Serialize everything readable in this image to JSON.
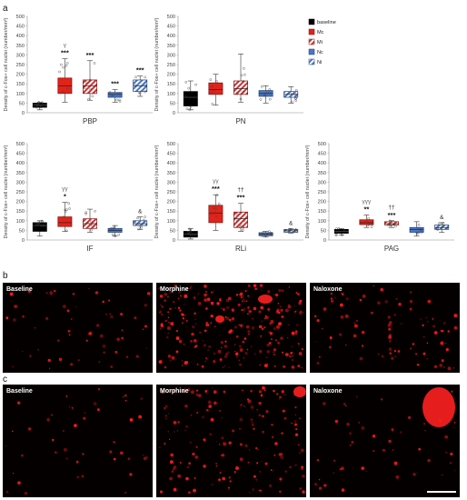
{
  "panel_letters": {
    "a": "a",
    "b": "b",
    "c": "c"
  },
  "chart_data": [
    {
      "type": "box",
      "title": "PBP",
      "ylabel": "Density of c-Fos+ cell nuclei (number/mm²)",
      "ylim": [
        0,
        500
      ],
      "yticks": [
        0,
        50,
        100,
        150,
        200,
        250,
        300,
        350,
        400,
        450,
        500
      ],
      "series": [
        {
          "name": "baseline",
          "min": 15,
          "q1": 28,
          "median": 40,
          "q3": 50,
          "max": 55,
          "stars": "",
          "sym": ""
        },
        {
          "name": "Mc",
          "min": 55,
          "q1": 100,
          "median": 140,
          "q3": 180,
          "max": 280,
          "stars": "***",
          "sym": "γ"
        },
        {
          "name": "Mi",
          "min": 65,
          "q1": 100,
          "median": 140,
          "q3": 170,
          "max": 270,
          "stars": "***",
          "sym": ""
        },
        {
          "name": "Nc",
          "min": 55,
          "q1": 80,
          "median": 95,
          "q3": 105,
          "max": 120,
          "stars": "***",
          "sym": ""
        },
        {
          "name": "Ni",
          "min": 85,
          "q1": 110,
          "median": 140,
          "q3": 170,
          "max": 190,
          "stars": "***",
          "sym": ""
        }
      ]
    },
    {
      "type": "box",
      "title": "PN",
      "ylabel": "Density of c-Fos+ cell nuclei (number/mm²)",
      "ylim": [
        0,
        500
      ],
      "yticks": [
        0,
        50,
        100,
        150,
        200,
        250,
        300,
        350,
        400,
        450,
        500
      ],
      "series": [
        {
          "name": "baseline",
          "min": 15,
          "q1": 35,
          "median": 80,
          "q3": 110,
          "max": 165,
          "stars": "",
          "sym": ""
        },
        {
          "name": "Mc",
          "min": 40,
          "q1": 95,
          "median": 120,
          "q3": 155,
          "max": 200,
          "stars": "",
          "sym": ""
        },
        {
          "name": "Mi",
          "min": 55,
          "q1": 95,
          "median": 125,
          "q3": 165,
          "max": 305,
          "stars": "",
          "sym": ""
        },
        {
          "name": "Nc",
          "min": 50,
          "q1": 85,
          "median": 100,
          "q3": 115,
          "max": 140,
          "stars": "",
          "sym": ""
        },
        {
          "name": "Ni",
          "min": 50,
          "q1": 80,
          "median": 95,
          "q3": 110,
          "max": 135,
          "stars": "",
          "sym": ""
        }
      ]
    },
    {
      "type": "box",
      "title": "IF",
      "ylabel": "Density of c-Fos+ cell nuclei (number/mm²)",
      "ylim": [
        0,
        500
      ],
      "yticks": [
        0,
        50,
        100,
        150,
        200,
        250,
        300,
        350,
        400,
        450,
        500
      ],
      "series": [
        {
          "name": "baseline",
          "min": 20,
          "q1": 45,
          "median": 75,
          "q3": 90,
          "max": 100,
          "stars": "",
          "sym": ""
        },
        {
          "name": "Mc",
          "min": 45,
          "q1": 70,
          "median": 90,
          "q3": 120,
          "max": 195,
          "stars": "*",
          "sym": "γγ"
        },
        {
          "name": "Mi",
          "min": 40,
          "q1": 60,
          "median": 85,
          "q3": 110,
          "max": 160,
          "stars": "",
          "sym": ""
        },
        {
          "name": "Nc",
          "min": 20,
          "q1": 40,
          "median": 50,
          "q3": 60,
          "max": 75,
          "stars": "",
          "sym": ""
        },
        {
          "name": "Ni",
          "min": 55,
          "q1": 75,
          "median": 85,
          "q3": 100,
          "max": 120,
          "stars": "",
          "sym": "&"
        }
      ]
    },
    {
      "type": "box",
      "title": "RLi",
      "ylabel": "Density of c-Fos+ cell nuclei (number/mm²)",
      "ylim": [
        0,
        500
      ],
      "yticks": [
        0,
        50,
        100,
        150,
        200,
        250,
        300,
        350,
        400,
        450,
        500
      ],
      "series": [
        {
          "name": "baseline",
          "min": 5,
          "q1": 15,
          "median": 30,
          "q3": 45,
          "max": 60,
          "stars": "",
          "sym": ""
        },
        {
          "name": "Mc",
          "min": 50,
          "q1": 90,
          "median": 140,
          "q3": 180,
          "max": 235,
          "stars": "***",
          "sym": "γγ"
        },
        {
          "name": "Mi",
          "min": 45,
          "q1": 65,
          "median": 110,
          "q3": 145,
          "max": 190,
          "stars": "***",
          "sym": "††"
        },
        {
          "name": "Nc",
          "min": 15,
          "q1": 22,
          "median": 30,
          "q3": 38,
          "max": 45,
          "stars": "",
          "sym": ""
        },
        {
          "name": "Ni",
          "min": 35,
          "q1": 40,
          "median": 48,
          "q3": 55,
          "max": 60,
          "stars": "",
          "sym": "&"
        }
      ]
    },
    {
      "type": "box",
      "title": "PAG",
      "ylabel": "Density of c-Fos+ cell nuclei (number/mm²)",
      "ylim": [
        0,
        500
      ],
      "yticks": [
        0,
        50,
        100,
        150,
        200,
        250,
        300,
        350,
        400,
        450,
        500
      ],
      "series": [
        {
          "name": "baseline",
          "min": 25,
          "q1": 35,
          "median": 45,
          "q3": 55,
          "max": 60,
          "stars": "",
          "sym": ""
        },
        {
          "name": "Mc",
          "min": 65,
          "q1": 80,
          "median": 90,
          "q3": 105,
          "max": 130,
          "stars": "**",
          "sym": "γγγ"
        },
        {
          "name": "Mi",
          "min": 65,
          "q1": 78,
          "median": 85,
          "q3": 95,
          "max": 100,
          "stars": "***",
          "sym": "††"
        },
        {
          "name": "Nc",
          "min": 20,
          "q1": 40,
          "median": 55,
          "q3": 65,
          "max": 95,
          "stars": "",
          "sym": ""
        },
        {
          "name": "Ni",
          "min": 40,
          "q1": 55,
          "median": 65,
          "q3": 78,
          "max": 90,
          "stars": "",
          "sym": "&"
        }
      ]
    }
  ],
  "legend": [
    {
      "name": "baseline",
      "label": "baseline"
    },
    {
      "name": "Mc",
      "label": "Mc"
    },
    {
      "name": "Mi",
      "label": "Mi"
    },
    {
      "name": "Nc",
      "label": "Nc"
    },
    {
      "name": "Ni",
      "label": "Ni"
    }
  ],
  "micrographs": {
    "b": [
      "Baseline",
      "Morphine",
      "Naloxone"
    ],
    "c": [
      "Baseline",
      "Morphine",
      "Naloxone"
    ]
  },
  "colors": {
    "baseline": "#000000",
    "Mc": "#e2231a",
    "Mi": "#c62828",
    "Nc": "#3f6fbf",
    "Ni": "#4a76c4",
    "axis": "#8f8f8f",
    "micrograph_bg": "#050000",
    "signal": "#ff1a1a"
  }
}
